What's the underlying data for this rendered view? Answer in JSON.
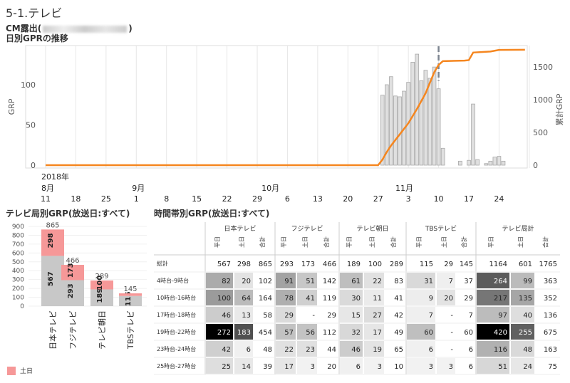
{
  "page": {
    "title": "5-1.テレビ",
    "subtitle_prefix": "CM露出(",
    "subtitle_suffix": ")",
    "chart_title": "日別GPRの推移",
    "bar_title": "テレビ局別GRP(放送日:すべて)",
    "table_title": "時間帯別GRP(放送日:すべて)",
    "legend_label": "土日"
  },
  "chart_data": [
    {
      "type": "bar",
      "title": "日別GPRの推移",
      "ylabel": "GRP",
      "y2label": "累計GRP",
      "ylim": [
        0,
        150
      ],
      "y2lim": [
        0,
        1880
      ],
      "yticks": [
        "0",
        "50",
        "100"
      ],
      "y2ticks": [
        "0",
        "500",
        "1000",
        "1500"
      ],
      "x_year_label": "2018年",
      "x_months": [
        {
          "label": "8月",
          "day": 0
        },
        {
          "label": "9月",
          "day": 21
        },
        {
          "label": "10月",
          "day": 51
        },
        {
          "label": "11月",
          "day": 82
        }
      ],
      "x_ticks": [
        {
          "label": "11",
          "day": 0
        },
        {
          "label": "18",
          "day": 7
        },
        {
          "label": "25",
          "day": 14
        },
        {
          "label": "1",
          "day": 21
        },
        {
          "label": "8",
          "day": 28
        },
        {
          "label": "15",
          "day": 35
        },
        {
          "label": "22",
          "day": 42
        },
        {
          "label": "29",
          "day": 49
        },
        {
          "label": "6",
          "day": 56
        },
        {
          "label": "13",
          "day": 63
        },
        {
          "label": "20",
          "day": 70
        },
        {
          "label": "27",
          "day": 77
        },
        {
          "label": "3",
          "day": 84
        },
        {
          "label": "10",
          "day": 91
        },
        {
          "label": "17",
          "day": 98
        },
        {
          "label": "24",
          "day": 105
        }
      ],
      "series_bars": [
        {
          "day": 78,
          "value": 87
        },
        {
          "day": 79,
          "value": 100
        },
        {
          "day": 80,
          "value": 110
        },
        {
          "day": 81,
          "value": 86
        },
        {
          "day": 82,
          "value": 85
        },
        {
          "day": 83,
          "value": 92
        },
        {
          "day": 84,
          "value": 103
        },
        {
          "day": 85,
          "value": 128
        },
        {
          "day": 86,
          "value": 138
        },
        {
          "day": 87,
          "value": 105
        },
        {
          "day": 88,
          "value": 118
        },
        {
          "day": 89,
          "value": 108
        },
        {
          "day": 90,
          "value": 122
        },
        {
          "day": 91,
          "value": 95
        },
        {
          "day": 92,
          "value": 21
        },
        {
          "day": 96,
          "value": 5
        },
        {
          "day": 98,
          "value": 6
        },
        {
          "day": 99,
          "value": 76
        },
        {
          "day": 100,
          "value": 7
        },
        {
          "day": 102,
          "value": 2
        },
        {
          "day": 103,
          "value": 5
        },
        {
          "day": 104,
          "value": 10
        },
        {
          "day": 105,
          "value": 11
        },
        {
          "day": 106,
          "value": 5
        }
      ],
      "series_cumulative": [
        {
          "day": 0,
          "value": 0
        },
        {
          "day": 77,
          "value": 0
        },
        {
          "day": 78,
          "value": 85
        },
        {
          "day": 79,
          "value": 200
        },
        {
          "day": 80,
          "value": 300
        },
        {
          "day": 82,
          "value": 470
        },
        {
          "day": 84,
          "value": 640
        },
        {
          "day": 86,
          "value": 860
        },
        {
          "day": 88,
          "value": 1100
        },
        {
          "day": 89,
          "value": 1260
        },
        {
          "day": 90,
          "value": 1420
        },
        {
          "day": 91,
          "value": 1530
        },
        {
          "day": 92,
          "value": 1588
        },
        {
          "day": 97,
          "value": 1597
        },
        {
          "day": 98,
          "value": 1603
        },
        {
          "day": 99,
          "value": 1720
        },
        {
          "day": 103,
          "value": 1735
        },
        {
          "day": 105,
          "value": 1760
        },
        {
          "day": 111,
          "value": 1762
        }
      ],
      "marker_day": 91
    },
    {
      "type": "bar",
      "title": "テレビ局別GRP(放送日:すべて)",
      "stacked": true,
      "ylim": [
        0,
        900
      ],
      "yticks": [
        "0",
        "100",
        "200",
        "300",
        "400",
        "500",
        "600",
        "700",
        "800",
        "900"
      ],
      "categories": [
        "日本テレビ",
        "フジテレビ",
        "テレビ朝日",
        "TBSテレビ"
      ],
      "totals": [
        "865",
        "466",
        "289",
        "145"
      ],
      "series": [
        {
          "name": "",
          "color": "#c8c8c8",
          "values": [
            567,
            293,
            189,
            115
          ],
          "labels": [
            "567",
            "293",
            "189",
            "115"
          ]
        },
        {
          "name": "土日",
          "color": "#f69898",
          "values": [
            298,
            173,
            100,
            29
          ],
          "labels": [
            "298",
            "173",
            "100",
            ""
          ]
        }
      ]
    },
    {
      "type": "heatmap",
      "title": "時間帯別GRP(放送日:すべて)",
      "stations": [
        "日本テレビ",
        "フジテレビ",
        "テレビ朝日",
        "TBSテレビ",
        "テレビ局計"
      ],
      "sub_columns": [
        "平日",
        "土日",
        "合計"
      ],
      "row_labels": [
        "総計",
        "4時台-9時台",
        "10時台-16時台",
        "17時台-18時台",
        "19時台-22時台",
        "23時台-24時台",
        "25時台-27時台"
      ],
      "rows": [
        [
          567,
          298,
          865,
          293,
          173,
          466,
          189,
          100,
          289,
          115,
          29,
          145,
          1164,
          601,
          1765
        ],
        [
          82,
          20,
          102,
          91,
          51,
          142,
          61,
          22,
          83,
          31,
          7,
          37,
          264,
          99,
          363
        ],
        [
          100,
          64,
          164,
          78,
          41,
          119,
          30,
          11,
          41,
          9,
          20,
          29,
          217,
          135,
          352
        ],
        [
          46,
          13,
          58,
          29,
          "-",
          29,
          15,
          27,
          42,
          7,
          "-",
          7,
          97,
          40,
          136
        ],
        [
          272,
          183,
          454,
          57,
          56,
          112,
          32,
          17,
          49,
          60,
          "-",
          60,
          420,
          255,
          675
        ],
        [
          42,
          6,
          48,
          22,
          23,
          44,
          46,
          19,
          65,
          6,
          "-",
          6,
          116,
          48,
          163
        ],
        [
          25,
          14,
          39,
          17,
          3,
          20,
          6,
          3,
          10,
          3,
          3,
          6,
          51,
          24,
          75
        ]
      ]
    }
  ]
}
